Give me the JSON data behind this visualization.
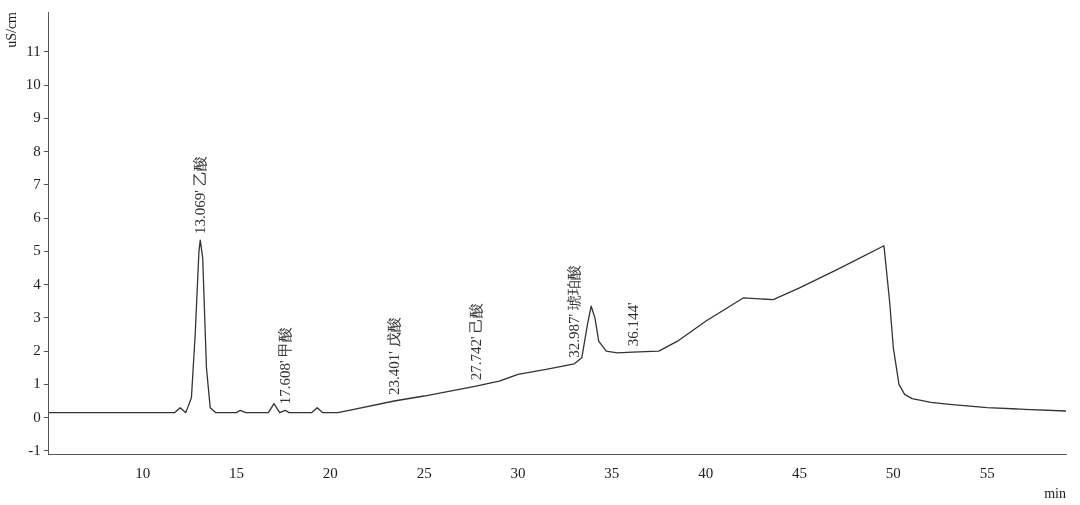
{
  "chart_data": {
    "type": "line",
    "xlabel": "min",
    "ylabel": "uS/cm",
    "xlim": [
      5,
      59.2
    ],
    "ylim": [
      -1.1,
      12.2
    ],
    "xticks": [
      10,
      15,
      20,
      25,
      30,
      35,
      40,
      45,
      50,
      55
    ],
    "yticks": [
      -1,
      0,
      1,
      2,
      3,
      4,
      5,
      6,
      7,
      8,
      9,
      10,
      11
    ],
    "grid": false,
    "marker": "none",
    "line_style": "solid",
    "series": [
      {
        "color": "#333333",
        "x": [
          5,
          11.7,
          12.0,
          12.3,
          12.6,
          12.8,
          13.0,
          13.07,
          13.2,
          13.4,
          13.6,
          13.9,
          15.0,
          15.2,
          15.5,
          16.7,
          17.0,
          17.3,
          17.6,
          17.8,
          19.0,
          19.3,
          19.6,
          20.4,
          21,
          23.4,
          25,
          27.7,
          29,
          30,
          31.5,
          33,
          33.4,
          33.7,
          33.9,
          34.1,
          34.3,
          34.7,
          35.3,
          36.1,
          37.5,
          38.5,
          40,
          42,
          43.6,
          45,
          47,
          49.5,
          49.8,
          50.0,
          50.3,
          50.6,
          51,
          52,
          53,
          55,
          57,
          59.2
        ],
        "values": [
          0.15,
          0.15,
          0.3,
          0.15,
          0.6,
          2.5,
          5.0,
          5.34,
          4.8,
          1.5,
          0.3,
          0.15,
          0.15,
          0.22,
          0.15,
          0.15,
          0.42,
          0.15,
          0.22,
          0.15,
          0.15,
          0.3,
          0.15,
          0.15,
          0.22,
          0.5,
          0.65,
          0.94,
          1.1,
          1.3,
          1.45,
          1.62,
          1.8,
          2.8,
          3.35,
          3.0,
          2.3,
          2.0,
          1.95,
          1.97,
          2.0,
          2.3,
          2.9,
          3.6,
          3.55,
          3.9,
          4.45,
          5.17,
          3.5,
          2.1,
          1.0,
          0.7,
          0.57,
          0.46,
          0.4,
          0.3,
          0.25,
          0.2
        ]
      }
    ],
    "annotations": [
      {
        "text": "13.069' 乙酸",
        "x": 13.069,
        "y": 5.34
      },
      {
        "text": "17.608' 甲酸",
        "x": 17.608,
        "y": 0.22
      },
      {
        "text": "23.401' 戊酸",
        "x": 23.401,
        "y": 0.5
      },
      {
        "text": "27.742' 己酸",
        "x": 27.742,
        "y": 0.94
      },
      {
        "text": "32.987' 琥珀酸",
        "x": 32.987,
        "y": 1.62
      },
      {
        "text": "36.144'",
        "x": 36.144,
        "y": 1.97
      }
    ]
  }
}
